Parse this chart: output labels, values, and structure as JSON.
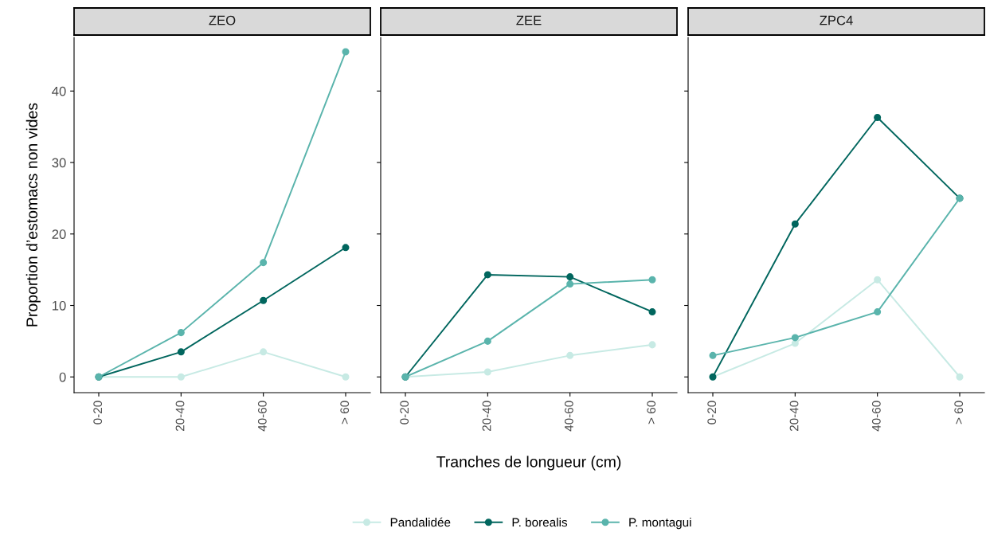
{
  "chart_data": [
    {
      "type": "line",
      "title": "ZEO",
      "ylabel": "Proportion d’estomacs non vides",
      "categories": [
        "0-20",
        "20-40",
        "40-60",
        "> 60"
      ],
      "ylim": [
        -2.2,
        47.5
      ],
      "yticks": [
        0,
        10,
        20,
        30,
        40
      ],
      "marker": "circle",
      "legend": "bottom",
      "grid": false,
      "series": [
        {
          "name": "Pandalidée",
          "color": "#c7eae4",
          "values": [
            0,
            0,
            3.5,
            0
          ]
        },
        {
          "name": "P. borealis",
          "color": "#01665e",
          "values": [
            0,
            3.5,
            10.7,
            18.1
          ]
        },
        {
          "name": "P. montagui",
          "color": "#5ab4ac",
          "values": [
            0,
            6.2,
            16.0,
            45.5
          ]
        }
      ]
    },
    {
      "type": "line",
      "title": "ZEE",
      "xlabel": "Tranches de longueur (cm)",
      "categories": [
        "0-20",
        "20-40",
        "40-60",
        "> 60"
      ],
      "ylim": [
        -2.2,
        47.5
      ],
      "yticks": [
        0,
        10,
        20,
        30,
        40
      ],
      "tick_labels": "x",
      "marker": "circle",
      "grid": false,
      "series": [
        {
          "color": "#c7eae4",
          "values": [
            0,
            0.7,
            3.0,
            4.5
          ]
        },
        {
          "color": "#01665e",
          "values": [
            0,
            14.3,
            14.0,
            9.1
          ]
        },
        {
          "color": "#5ab4ac",
          "values": [
            0,
            5.0,
            13.0,
            13.6
          ]
        }
      ]
    },
    {
      "type": "line",
      "title": "ZPC4",
      "categories": [
        "0-20",
        "20-40",
        "40-60",
        "> 60"
      ],
      "ylim": [
        -2.2,
        47.5
      ],
      "yticks": [
        0,
        10,
        20,
        30,
        40
      ],
      "tick_labels": "x",
      "marker": "circle",
      "grid": false,
      "series": [
        {
          "color": "#c7eae4",
          "values": [
            0,
            4.7,
            13.6,
            0
          ]
        },
        {
          "color": "#01665e",
          "values": [
            0,
            21.4,
            36.3,
            25.0
          ]
        },
        {
          "color": "#5ab4ac",
          "values": [
            3.0,
            5.5,
            9.1,
            25.0
          ]
        }
      ]
    }
  ]
}
